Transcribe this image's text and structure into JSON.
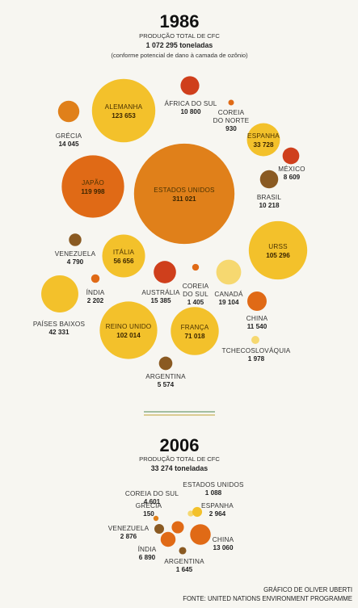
{
  "chart_data": [
    {
      "type": "bubble",
      "title": "1986",
      "subtitle": "PRODUÇÃO TOTAL DE CFC",
      "total": "1 072 295 toneladas",
      "note": "(conforme potencial de dano à camada de ozônio)",
      "unit": "toneladas",
      "colors": {
        "dark_brown": "#8a5a22",
        "red": "#cf3f1c",
        "orange": "#e06a16",
        "deep_orange": "#e0801a",
        "yellow": "#f3c12b",
        "pale_yellow": "#f6d870"
      },
      "bubbles": [
        {
          "name": "ALEMANHA",
          "label": "123 653",
          "value": 123653,
          "color": "#f3c12b"
        },
        {
          "name": "ÁFRICA DO SUL",
          "label": "10 800",
          "value": 10800,
          "color": "#cf3f1c"
        },
        {
          "name": "COREIA DO NORTE",
          "label": "930",
          "value": 930,
          "color": "#e06a16"
        },
        {
          "name": "GRÉCIA",
          "label": "14 045",
          "value": 14045,
          "color": "#e0801a"
        },
        {
          "name": "ESPANHA",
          "label": "33 728",
          "value": 33728,
          "color": "#f3c12b"
        },
        {
          "name": "MÉXICO",
          "label": "8 609",
          "value": 8609,
          "color": "#cf3f1c"
        },
        {
          "name": "JAPÃO",
          "label": "119 998",
          "value": 119998,
          "color": "#e06a16"
        },
        {
          "name": "ESTADOS UNIDOS",
          "label": "311 021",
          "value": 311021,
          "color": "#e0801a"
        },
        {
          "name": "BRASIL",
          "label": "10 218",
          "value": 10218,
          "color": "#8a5a22"
        },
        {
          "name": "VENEZUELA",
          "label": "4 790",
          "value": 4790,
          "color": "#8a5a22"
        },
        {
          "name": "ITÁLIA",
          "label": "56 656",
          "value": 56656,
          "color": "#f3c12b"
        },
        {
          "name": "URSS",
          "label": "105 296",
          "value": 105296,
          "color": "#f3c12b"
        },
        {
          "name": "ÍNDIA",
          "label": "2 202",
          "value": 2202,
          "color": "#e06a16"
        },
        {
          "name": "AUSTRÁLIA",
          "label": "15 385",
          "value": 15385,
          "color": "#cf3f1c"
        },
        {
          "name": "COREIA DO SUL",
          "label": "1 405",
          "value": 1405,
          "color": "#e06a16"
        },
        {
          "name": "CANADÁ",
          "label": "19 104",
          "value": 19104,
          "color": "#f6d870"
        },
        {
          "name": "PAÍSES BAIXOS",
          "label": "42 331",
          "value": 42331,
          "color": "#f3c12b"
        },
        {
          "name": "REINO UNIDO",
          "label": "102 014",
          "value": 102014,
          "color": "#f3c12b"
        },
        {
          "name": "FRANÇA",
          "label": "71 018",
          "value": 71018,
          "color": "#f3c12b"
        },
        {
          "name": "CHINA",
          "label": "11 540",
          "value": 11540,
          "color": "#e06a16"
        },
        {
          "name": "TCHECOSLOVÁQUIA",
          "label": "1 978",
          "value": 1978,
          "color": "#f6d870"
        },
        {
          "name": "ARGENTINA",
          "label": "5 574",
          "value": 5574,
          "color": "#8a5a22"
        }
      ]
    },
    {
      "type": "bubble",
      "title": "2006",
      "subtitle": "PRODUÇÃO TOTAL DE CFC",
      "total": "33 274 toneladas",
      "unit": "toneladas",
      "bubbles": [
        {
          "name": "ESTADOS UNIDOS",
          "label": "1 088",
          "value": 1088,
          "color": "#f6d870"
        },
        {
          "name": "COREIA DO SUL",
          "label": "4 601",
          "value": 4601,
          "color": "#e06a16"
        },
        {
          "name": "GRÉCIA",
          "label": "150",
          "value": 150,
          "color": "#e0801a"
        },
        {
          "name": "ESPANHA",
          "label": "2 964",
          "value": 2964,
          "color": "#f3c12b"
        },
        {
          "name": "VENEZUELA",
          "label": "2 876",
          "value": 2876,
          "color": "#8a5a22"
        },
        {
          "name": "CHINA",
          "label": "13 060",
          "value": 13060,
          "color": "#e06a16"
        },
        {
          "name": "ÍNDIA",
          "label": "6 890",
          "value": 6890,
          "color": "#e06a16"
        },
        {
          "name": "ARGENTINA",
          "label": "1 645",
          "value": 1645,
          "color": "#8a5a22"
        }
      ]
    }
  ],
  "credits": {
    "graphic": "GRÁFICO DE OLIVER UBERTI",
    "source": "FONTE: UNITED NATIONS ENVIRONMENT PROGRAMME"
  }
}
